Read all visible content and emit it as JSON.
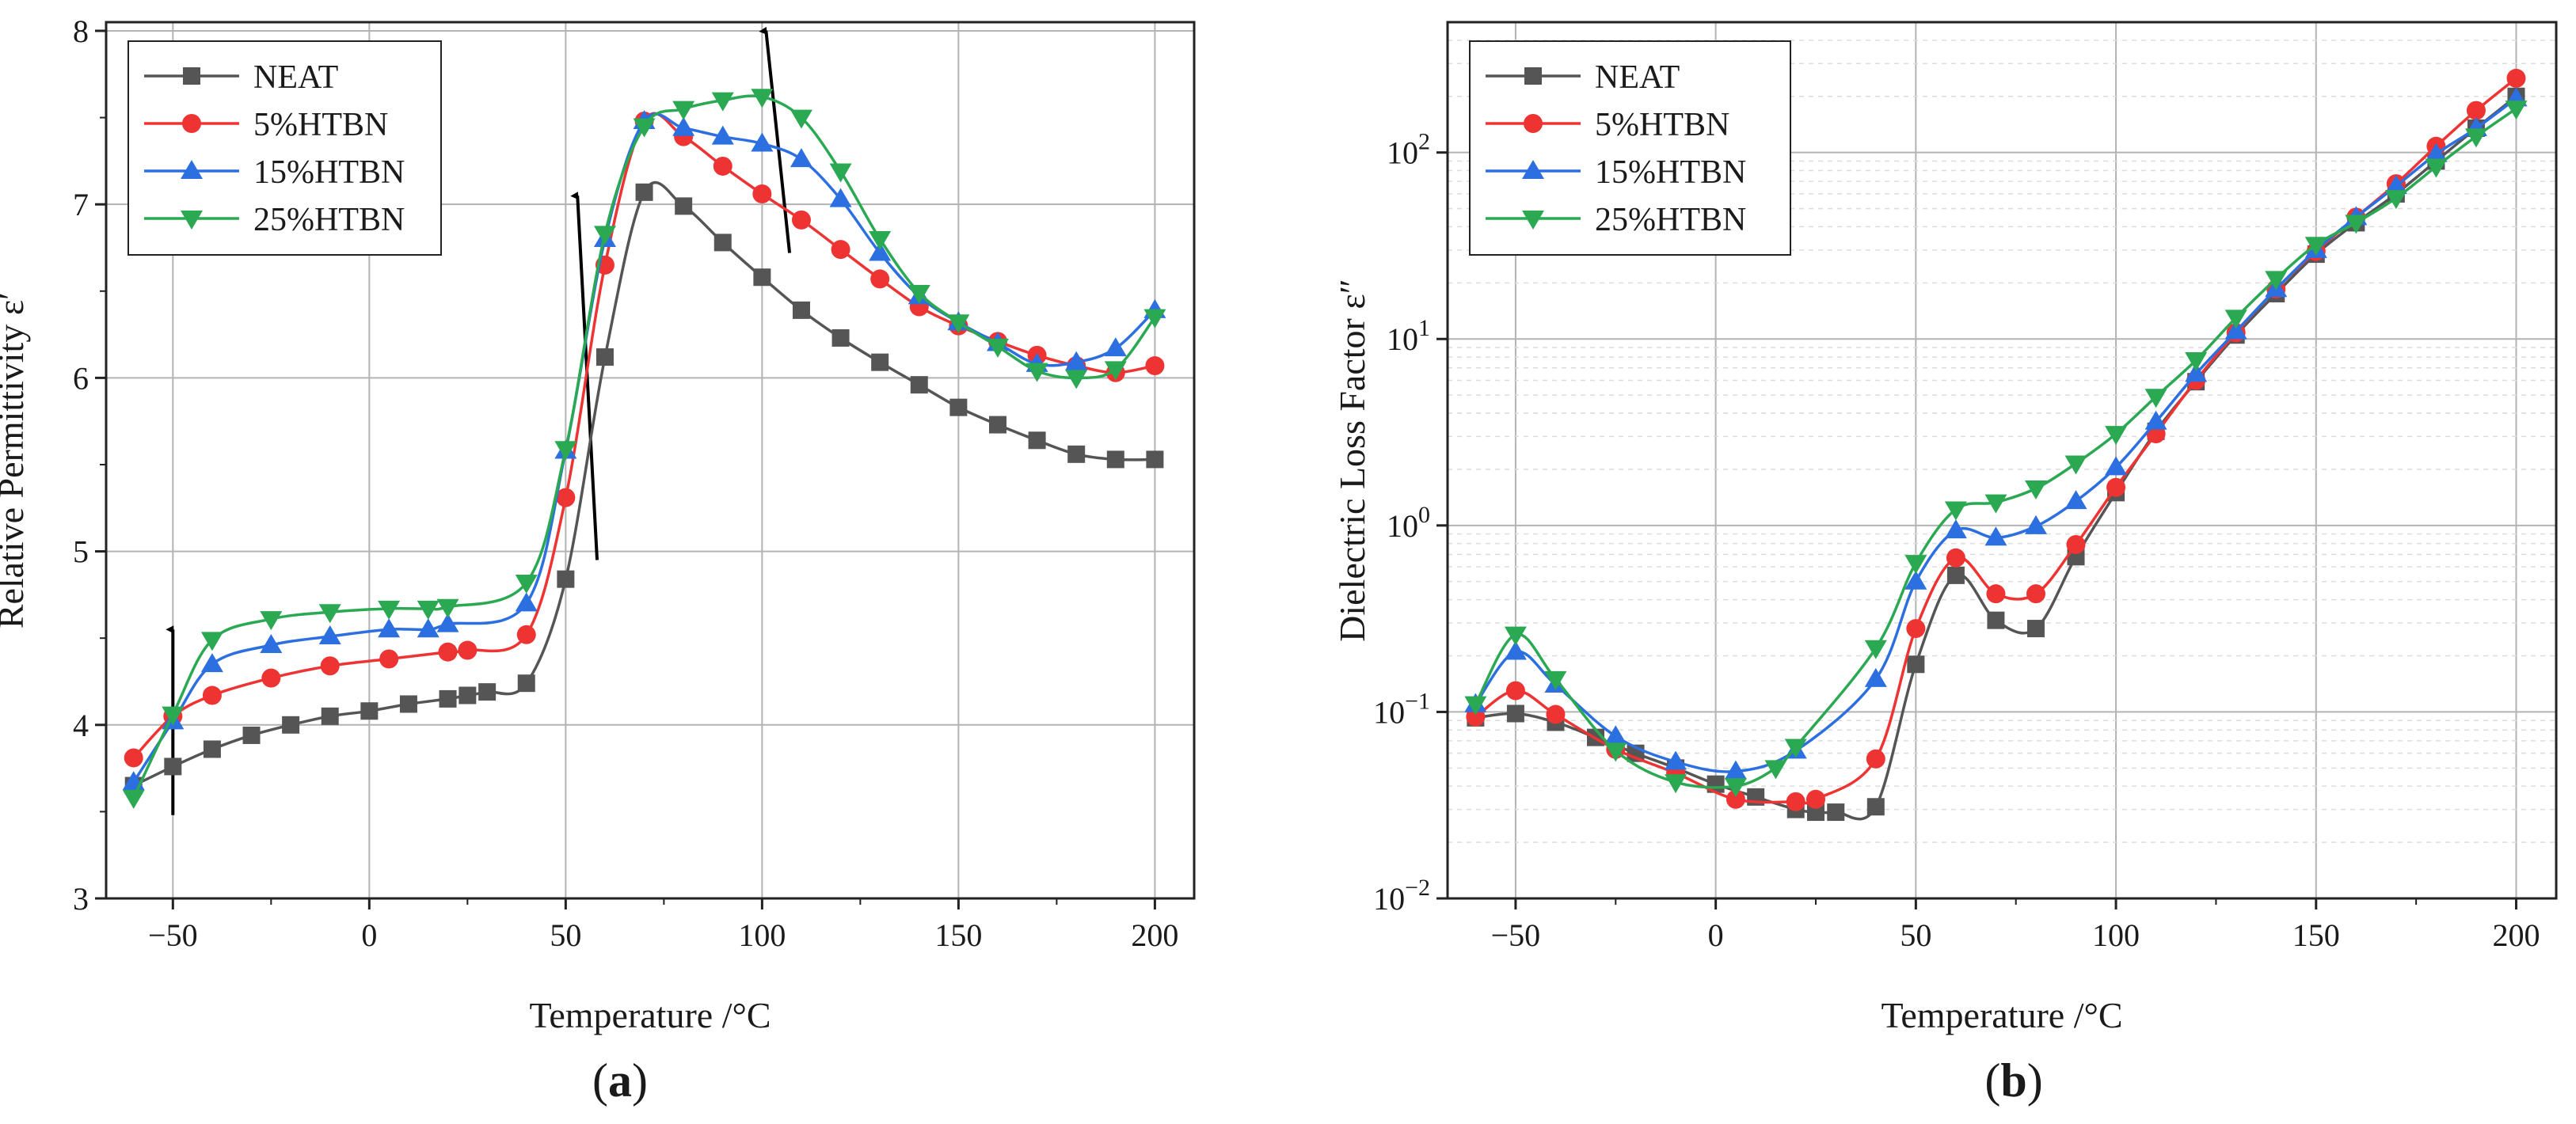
{
  "figure": {
    "panels": [
      {
        "paren_open": "(",
        "letter": "a",
        "paren_close": ")"
      },
      {
        "paren_open": "(",
        "letter": "b",
        "paren_close": ")"
      }
    ]
  },
  "chart_data": [
    {
      "type": "line",
      "title": "",
      "xlabel": "Temperature /°C",
      "ylabel": "Relative Permittivity ε′",
      "yscale": "linear",
      "xlim": [
        -67,
        210
      ],
      "ylim": [
        3,
        8.05
      ],
      "xticks": [
        -50,
        0,
        50,
        100,
        150,
        200
      ],
      "yticks": [
        3,
        4,
        5,
        6,
        7,
        8
      ],
      "grid": true,
      "legend_position": "top-left",
      "series": [
        {
          "name": "NEAT",
          "color": "#555555",
          "marker": "square",
          "x": [
            -60,
            -50,
            -40,
            -30,
            -20,
            -10,
            0,
            10,
            20,
            25,
            30,
            40,
            50,
            60,
            70,
            80,
            90,
            100,
            110,
            120,
            130,
            140,
            150,
            160,
            170,
            180,
            190,
            200
          ],
          "y": [
            3.65,
            3.76,
            3.86,
            3.94,
            4.0,
            4.05,
            4.08,
            4.12,
            4.15,
            4.17,
            4.19,
            4.24,
            4.84,
            6.12,
            7.07,
            6.99,
            6.78,
            6.58,
            6.39,
            6.23,
            6.09,
            5.96,
            5.83,
            5.73,
            5.64,
            5.56,
            5.53,
            5.53
          ]
        },
        {
          "name": "5%HTBN",
          "color": "#ee3333",
          "marker": "circle",
          "x": [
            -60,
            -50,
            -40,
            -25,
            -10,
            5,
            20,
            25,
            40,
            50,
            60,
            70,
            80,
            90,
            100,
            110,
            120,
            130,
            140,
            150,
            160,
            170,
            180,
            190,
            200
          ],
          "y": [
            3.81,
            4.05,
            4.17,
            4.27,
            4.34,
            4.38,
            4.42,
            4.43,
            4.52,
            5.31,
            6.65,
            7.48,
            7.39,
            7.22,
            7.06,
            6.91,
            6.74,
            6.57,
            6.41,
            6.3,
            6.21,
            6.13,
            6.07,
            6.03,
            6.07
          ]
        },
        {
          "name": "15%HTBN",
          "color": "#2c6fe0",
          "marker": "triangle-up",
          "x": [
            -60,
            -50,
            -40,
            -25,
            -10,
            5,
            15,
            20,
            40,
            50,
            60,
            70,
            80,
            90,
            100,
            110,
            120,
            130,
            140,
            150,
            160,
            170,
            180,
            190,
            200
          ],
          "y": [
            3.67,
            4.02,
            4.35,
            4.46,
            4.51,
            4.55,
            4.55,
            4.58,
            4.7,
            5.58,
            6.8,
            7.48,
            7.44,
            7.39,
            7.35,
            7.26,
            7.03,
            6.72,
            6.47,
            6.32,
            6.2,
            6.08,
            6.09,
            6.17,
            6.39
          ]
        },
        {
          "name": "25%HTBN",
          "color": "#2aa852",
          "marker": "triangle-down",
          "x": [
            -60,
            -50,
            -40,
            -25,
            -10,
            5,
            15,
            20,
            40,
            50,
            60,
            70,
            80,
            90,
            100,
            110,
            120,
            130,
            140,
            150,
            160,
            170,
            180,
            190,
            200
          ],
          "y": [
            3.58,
            4.06,
            4.49,
            4.61,
            4.65,
            4.67,
            4.67,
            4.68,
            4.82,
            5.59,
            6.83,
            7.45,
            7.55,
            7.6,
            7.62,
            7.5,
            7.19,
            6.8,
            6.49,
            6.32,
            6.18,
            6.04,
            6.0,
            6.05,
            6.35
          ]
        }
      ],
      "annotations": [
        {
          "type": "arrow",
          "from": [
            -50,
            3.48
          ],
          "to": [
            -50,
            4.55
          ]
        },
        {
          "type": "arrow",
          "from": [
            58,
            4.95
          ],
          "to": [
            53,
            7.05
          ]
        },
        {
          "type": "arrow",
          "from": [
            107,
            6.72
          ],
          "to": [
            101,
            8.0
          ]
        }
      ]
    },
    {
      "type": "line",
      "title": "",
      "xlabel": "Temperature /°C",
      "ylabel": "Dielectric Loss Factor ε″",
      "yscale": "log",
      "xlim": [
        -67,
        210
      ],
      "ylim": [
        0.01,
        500
      ],
      "xticks": [
        -50,
        0,
        50,
        100,
        150,
        200
      ],
      "yticks": [
        {
          "base": "10",
          "exp": "−2",
          "value": 0.01
        },
        {
          "base": "10",
          "exp": "−1",
          "value": 0.1
        },
        {
          "base": "10",
          "exp": "0",
          "value": 1
        },
        {
          "base": "10",
          "exp": "1",
          "value": 10
        },
        {
          "base": "10",
          "exp": "2",
          "value": 100
        }
      ],
      "grid": true,
      "legend_position": "top-left",
      "series": [
        {
          "name": "NEAT",
          "color": "#555555",
          "marker": "square",
          "x": [
            -60,
            -50,
            -40,
            -30,
            -20,
            -10,
            0,
            10,
            20,
            25,
            30,
            40,
            50,
            60,
            70,
            80,
            90,
            100,
            110,
            120,
            130,
            140,
            150,
            160,
            170,
            180,
            190,
            200
          ],
          "y": [
            0.093,
            0.098,
            0.088,
            0.073,
            0.06,
            0.05,
            0.041,
            0.035,
            0.03,
            0.029,
            0.029,
            0.031,
            0.18,
            0.54,
            0.31,
            0.28,
            0.68,
            1.5,
            3.2,
            5.9,
            10.5,
            17.5,
            28.5,
            42,
            60,
            90,
            135,
            200
          ]
        },
        {
          "name": "5%HTBN",
          "color": "#ee3333",
          "marker": "circle",
          "x": [
            -60,
            -50,
            -40,
            -25,
            -10,
            5,
            20,
            25,
            40,
            50,
            60,
            70,
            80,
            90,
            100,
            110,
            120,
            130,
            140,
            150,
            160,
            170,
            180,
            190,
            200
          ],
          "y": [
            0.094,
            0.13,
            0.097,
            0.063,
            0.047,
            0.034,
            0.033,
            0.034,
            0.056,
            0.28,
            0.67,
            0.43,
            0.43,
            0.79,
            1.6,
            3.1,
            6.0,
            10.8,
            18.5,
            29.5,
            45,
            68,
            108,
            168,
            250
          ]
        },
        {
          "name": "15%HTBN",
          "color": "#2c6fe0",
          "marker": "triangle-up",
          "x": [
            -60,
            -50,
            -40,
            -25,
            -10,
            5,
            20,
            40,
            50,
            60,
            70,
            80,
            90,
            100,
            110,
            120,
            130,
            140,
            150,
            160,
            170,
            180,
            190,
            200
          ],
          "y": [
            0.11,
            0.21,
            0.14,
            0.074,
            0.054,
            0.048,
            0.062,
            0.15,
            0.5,
            0.94,
            0.86,
            0.99,
            1.35,
            2.05,
            3.6,
            6.5,
            11,
            18.5,
            30,
            45,
            66,
            98,
            135,
            195
          ]
        },
        {
          "name": "25%HTBN",
          "color": "#2aa852",
          "marker": "triangle-down",
          "x": [
            -60,
            -50,
            -40,
            -25,
            -10,
            5,
            15,
            20,
            40,
            50,
            60,
            70,
            80,
            90,
            100,
            110,
            120,
            130,
            140,
            150,
            160,
            170,
            180,
            190,
            200
          ],
          "y": [
            0.11,
            0.26,
            0.15,
            0.062,
            0.042,
            0.04,
            0.05,
            0.065,
            0.22,
            0.63,
            1.22,
            1.33,
            1.58,
            2.15,
            3.1,
            4.9,
            7.7,
            13,
            21,
            32,
            42,
            57,
            84,
            122,
            172
          ]
        }
      ]
    }
  ]
}
